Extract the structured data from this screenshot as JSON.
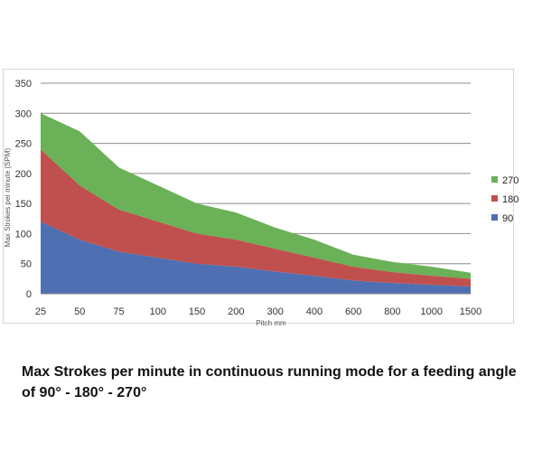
{
  "chart_data": {
    "type": "area",
    "stacked": true,
    "categories": [
      "25",
      "50",
      "75",
      "100",
      "150",
      "200",
      "300",
      "400",
      "600",
      "800",
      "1000",
      "1500"
    ],
    "series": [
      {
        "name": "90",
        "color": "#4f6fb3",
        "values": [
          120,
          90,
          70,
          60,
          50,
          45,
          37,
          30,
          22,
          18,
          15,
          12
        ]
      },
      {
        "name": "180",
        "color": "#c0504d",
        "values": [
          120,
          90,
          70,
          60,
          50,
          45,
          38,
          30,
          23,
          18,
          15,
          13
        ]
      },
      {
        "name": "270",
        "color": "#6ab157",
        "values": [
          60,
          90,
          70,
          60,
          50,
          45,
          35,
          30,
          20,
          17,
          15,
          10
        ]
      }
    ],
    "ylim": [
      0,
      350
    ],
    "yticks": [
      "0",
      "50",
      "100",
      "150",
      "200",
      "250",
      "300",
      "350"
    ],
    "ylabel": "Max Strokes per minute (SPM)",
    "xlabel": "Pitch mm",
    "legend": {
      "position": "right",
      "order": [
        "270",
        "180",
        "90"
      ]
    },
    "grid": "horizontal"
  },
  "caption": "Max Strokes per minute in continuous running mode for a feeding angle of 90° - 180° - 270°"
}
